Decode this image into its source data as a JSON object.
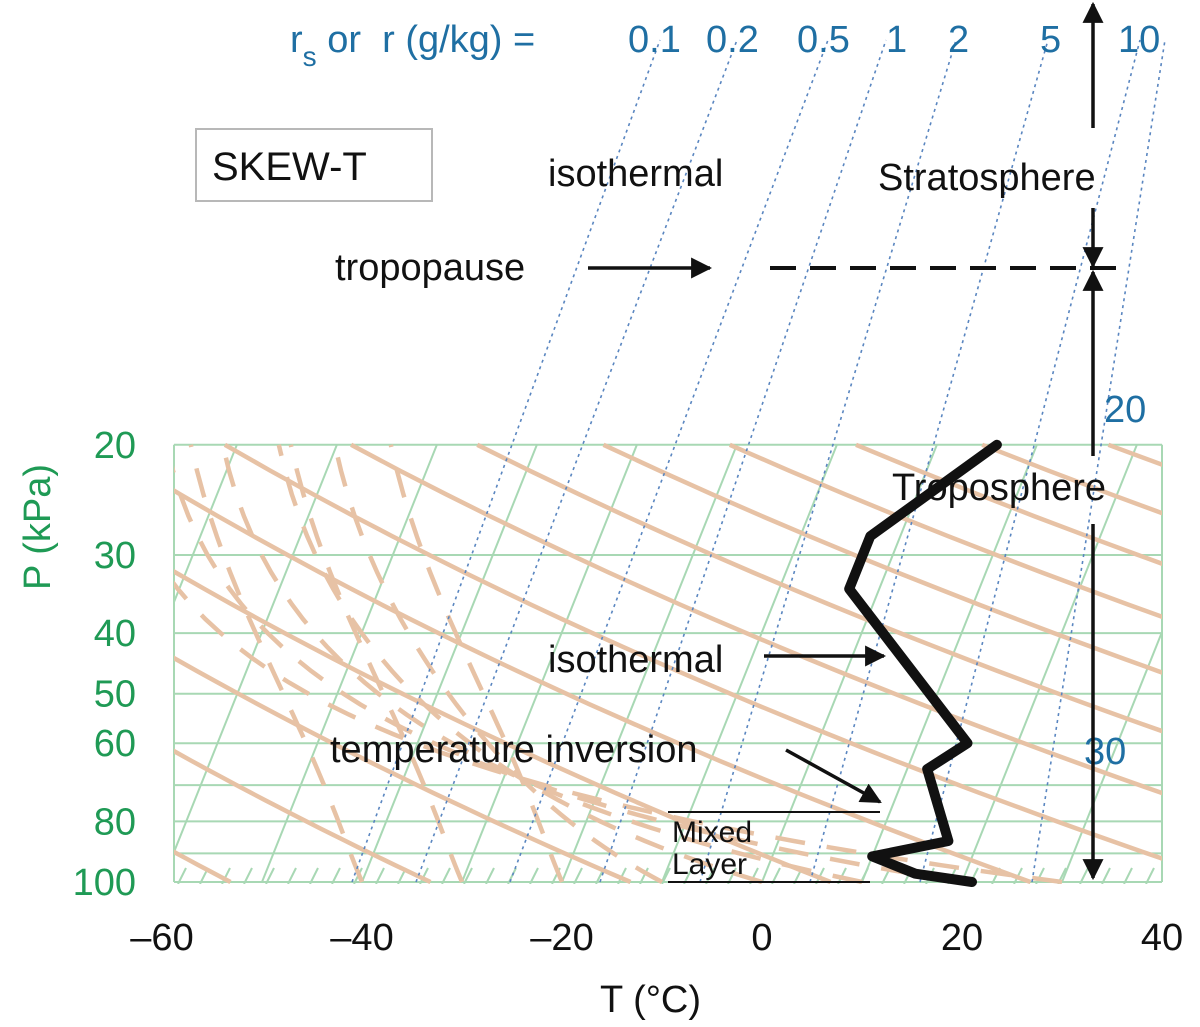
{
  "chart": {
    "box_label": "SKEW-T",
    "ylabel": "P (kPa)",
    "xlabel": "T (°C)",
    "mixing_ratio_prefix": "r",
    "mixing_ratio_sub": "s",
    "mixing_ratio_rest": " or  r (g/kg) =",
    "mixing_ratio_values": [
      "0.1",
      "0.2",
      "0.5",
      "1",
      "2",
      "5",
      "10"
    ],
    "mixing_ratio_inline": [
      "20",
      "30"
    ],
    "pressure_ticks": [
      "20",
      "30",
      "40",
      "50",
      "60",
      "80",
      "100"
    ],
    "temperature_ticks": [
      "–60",
      "–40",
      "–20",
      "0",
      "20",
      "40"
    ],
    "annotations": {
      "isothermal_top": "isothermal",
      "tropopause": "tropopause",
      "stratosphere": "Stratosphere",
      "troposphere": "Troposphere",
      "isothermal_mid": "isothermal",
      "inversion": "temperature inversion",
      "mixed_line1": "Mixed",
      "mixed_line2": "Layer"
    },
    "colors": {
      "isobar": "#a8d8b4",
      "isotherm": "#a8d8b4",
      "dry_adiabat": "#e7c2a5",
      "moist_adiabat": "#e7c2a5",
      "mixing_ratio": "#5a86c0",
      "sounding": "#111111",
      "axis_green": "#1f9a55",
      "axis_blue": "#1f6fa3"
    }
  },
  "chart_data": {
    "type": "line",
    "ylabel": "P (kPa)",
    "xlabel": "T (°C)",
    "y_scale": "log",
    "y_reversed": true,
    "ylim": [
      20,
      100
    ],
    "xlim": [
      -60,
      40
    ],
    "series": [
      {
        "points": [
          {
            "P": 100,
            "T": 21
          },
          {
            "P": 97,
            "T": 15
          },
          {
            "P": 91,
            "T": 10
          },
          {
            "P": 86,
            "T": 17
          },
          {
            "P": 66,
            "T": 12
          },
          {
            "P": 60,
            "T": 15
          },
          {
            "P": 34,
            "T": -3
          },
          {
            "P": 28,
            "T": -3
          },
          {
            "P": 20,
            "T": 6
          }
        ]
      }
    ]
  }
}
